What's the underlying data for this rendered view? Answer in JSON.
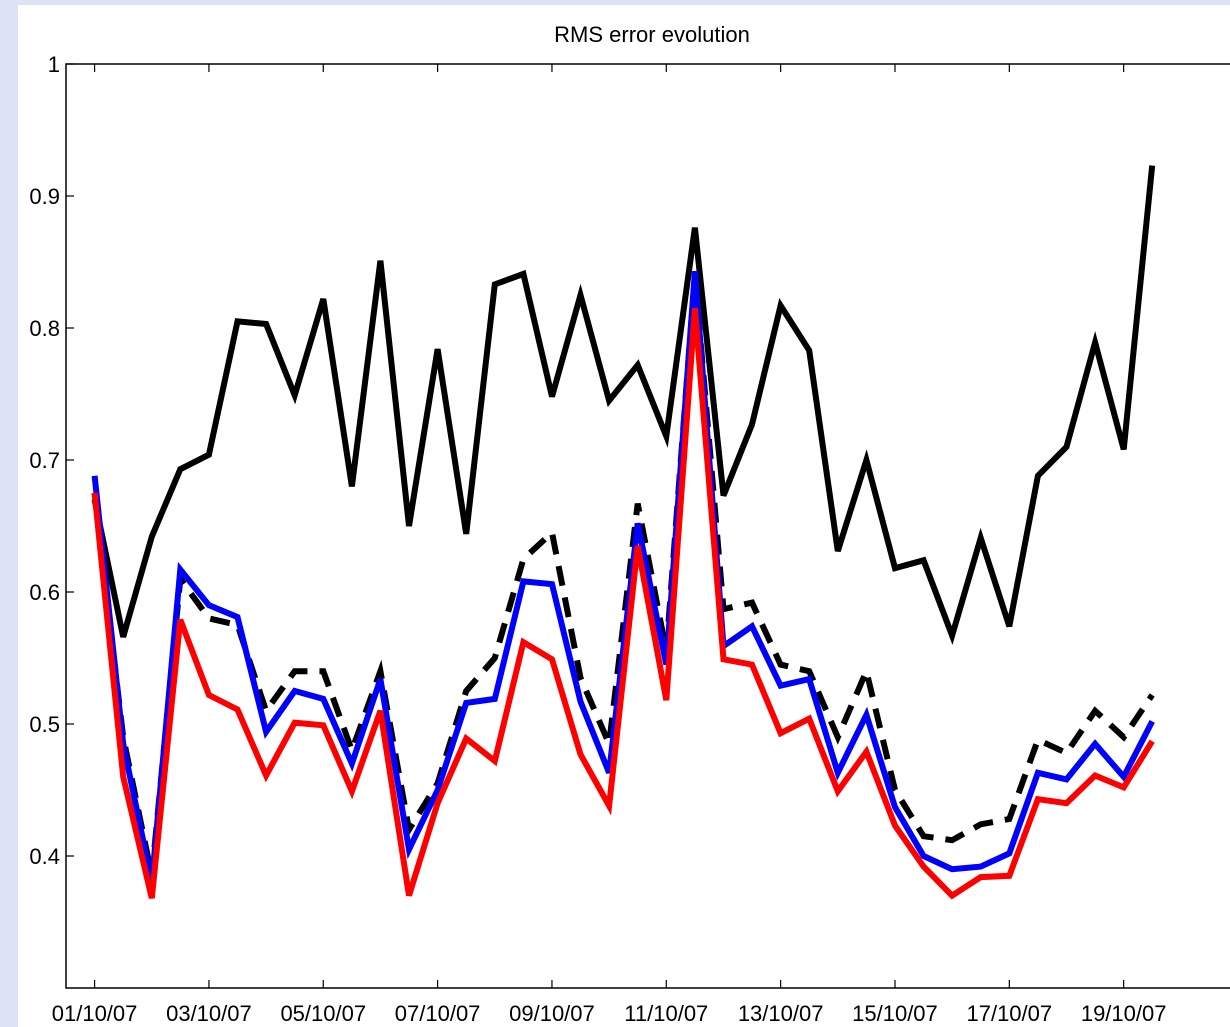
{
  "chart_data": {
    "type": "line",
    "title": "RMS error evolution",
    "xlabel": "",
    "ylabel": "",
    "xlim": [
      "30/09/07 12:00",
      "21/10/07"
    ],
    "ylim": [
      0.3,
      1.0
    ],
    "x_ticks": [
      "01/10/07",
      "03/10/07",
      "05/10/07",
      "07/10/07",
      "09/10/07",
      "11/10/07",
      "13/10/07",
      "15/10/07",
      "17/10/07",
      "19/10/07"
    ],
    "y_ticks": [
      "0.4",
      "0.5",
      "0.6",
      "0.7",
      "0.8",
      "0.9",
      "1"
    ],
    "y_tick_values": [
      0.4,
      0.5,
      0.6,
      0.7,
      0.8,
      0.9,
      1.0
    ],
    "grid": false,
    "x": [
      "01/10/07 00:00",
      "01/10/07 12:00",
      "02/10/07 00:00",
      "02/10/07 12:00",
      "03/10/07 00:00",
      "03/10/07 12:00",
      "04/10/07 00:00",
      "04/10/07 12:00",
      "05/10/07 00:00",
      "05/10/07 12:00",
      "06/10/07 00:00",
      "06/10/07 12:00",
      "07/10/07 00:00",
      "07/10/07 12:00",
      "08/10/07 00:00",
      "08/10/07 12:00",
      "09/10/07 00:00",
      "09/10/07 12:00",
      "10/10/07 00:00",
      "10/10/07 12:00",
      "11/10/07 00:00",
      "11/10/07 12:00",
      "12/10/07 00:00",
      "12/10/07 12:00",
      "13/10/07 00:00",
      "13/10/07 12:00",
      "14/10/07 00:00",
      "14/10/07 12:00",
      "15/10/07 00:00",
      "15/10/07 12:00",
      "16/10/07 00:00",
      "16/10/07 12:00",
      "17/10/07 00:00",
      "17/10/07 12:00",
      "18/10/07 00:00",
      "18/10/07 12:00",
      "19/10/07 00:00",
      "19/10/07 12:00"
    ],
    "series": [
      {
        "color": "#000000",
        "style": "solid",
        "values": [
          0.67,
          0.566,
          0.642,
          0.693,
          0.704,
          0.805,
          0.803,
          0.749,
          0.822,
          0.68,
          0.851,
          0.65,
          0.784,
          0.644,
          0.833,
          0.841,
          0.748,
          0.825,
          0.745,
          0.772,
          0.718,
          0.876,
          0.673,
          0.727,
          0.817,
          0.783,
          0.631,
          0.7,
          0.618,
          0.624,
          0.567,
          0.641,
          0.574,
          0.688,
          0.71,
          0.789,
          0.708,
          0.923
        ]
      },
      {
        "color": "#000000",
        "style": "dashed",
        "values": [
          0.675,
          0.49,
          0.385,
          0.61,
          0.58,
          0.575,
          0.51,
          0.54,
          0.54,
          0.48,
          0.54,
          0.42,
          0.455,
          0.525,
          0.55,
          0.625,
          0.645,
          0.535,
          0.485,
          0.667,
          0.555,
          0.84,
          0.587,
          0.592,
          0.545,
          0.54,
          0.49,
          0.54,
          0.45,
          0.415,
          0.412,
          0.424,
          0.428,
          0.488,
          0.478,
          0.51,
          0.49,
          0.522
        ]
      },
      {
        "color": "#0000ff",
        "style": "solid",
        "values": [
          0.688,
          0.485,
          0.38,
          0.617,
          0.59,
          0.581,
          0.494,
          0.525,
          0.519,
          0.47,
          0.534,
          0.405,
          0.45,
          0.516,
          0.519,
          0.608,
          0.606,
          0.517,
          0.463,
          0.652,
          0.545,
          0.843,
          0.559,
          0.574,
          0.529,
          0.534,
          0.463,
          0.507,
          0.437,
          0.4,
          0.39,
          0.392,
          0.402,
          0.463,
          0.458,
          0.485,
          0.46,
          0.502
        ]
      },
      {
        "color": "#ff0000",
        "style": "solid",
        "values": [
          0.675,
          0.46,
          0.368,
          0.579,
          0.522,
          0.511,
          0.461,
          0.501,
          0.499,
          0.449,
          0.51,
          0.37,
          0.44,
          0.489,
          0.472,
          0.562,
          0.549,
          0.477,
          0.438,
          0.635,
          0.518,
          0.815,
          0.549,
          0.545,
          0.493,
          0.504,
          0.449,
          0.479,
          0.423,
          0.392,
          0.37,
          0.384,
          0.385,
          0.443,
          0.44,
          0.461,
          0.452,
          0.487
        ]
      }
    ]
  }
}
